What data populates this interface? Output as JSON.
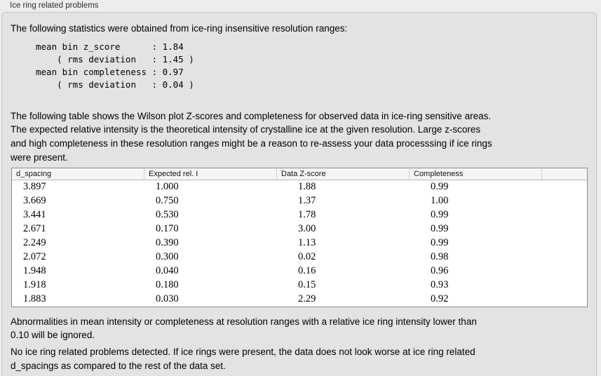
{
  "panel": {
    "title": "Ice ring related problems"
  },
  "intro": "The following statistics were obtained from ice-ring insensitive resolution ranges:",
  "stats_block": {
    "lines": [
      "mean bin z_score      : 1.84",
      "    ( rms deviation   : 1.45 )",
      "mean bin completeness : 0.97",
      "    ( rms deviation   : 0.04 )"
    ]
  },
  "description_lines": [
    "The following table shows the Wilson plot Z-scores and completeness for observed data in ice-ring sensitive areas.",
    "The expected relative intensity is the theoretical intensity of crystalline ice at the given resolution. Large z-scores",
    "and high completeness in these resolution ranges might be a reason to re-assess your data processsing if ice rings",
    "were present."
  ],
  "table": {
    "columns": [
      "d_spacing",
      "Expected rel. I",
      "Data Z-score",
      "Completeness"
    ],
    "rows": [
      [
        "3.897",
        "1.000",
        "1.88",
        "0.99"
      ],
      [
        "3.669",
        "0.750",
        "1.37",
        "1.00"
      ],
      [
        "3.441",
        "0.530",
        "1.78",
        "0.99"
      ],
      [
        "2.671",
        "0.170",
        "3.00",
        "0.99"
      ],
      [
        "2.249",
        "0.390",
        "1.13",
        "0.99"
      ],
      [
        "2.072",
        "0.300",
        "0.02",
        "0.98"
      ],
      [
        "1.948",
        "0.040",
        "0.16",
        "0.96"
      ],
      [
        "1.918",
        "0.180",
        "0.15",
        "0.93"
      ],
      [
        "1.883",
        "0.030",
        "2.29",
        "0.92"
      ]
    ]
  },
  "note1_lines": [
    "Abnormalities in mean intensity or completeness at resolution ranges with a relative ice ring intensity lower than",
    "0.10 will be ignored."
  ],
  "note2_lines": [
    "No ice ring related problems detected. If ice rings were present, the data does not look worse at ice ring related",
    "d_spacings as compared to the rest of the data set."
  ],
  "colors": {
    "outer_background": "#ededed",
    "panel_background": "#e3e3e3",
    "panel_border": "#c5c5c5",
    "table_border": "#8c8c8c",
    "header_background": "#f5f5f5",
    "text": "#000000"
  }
}
